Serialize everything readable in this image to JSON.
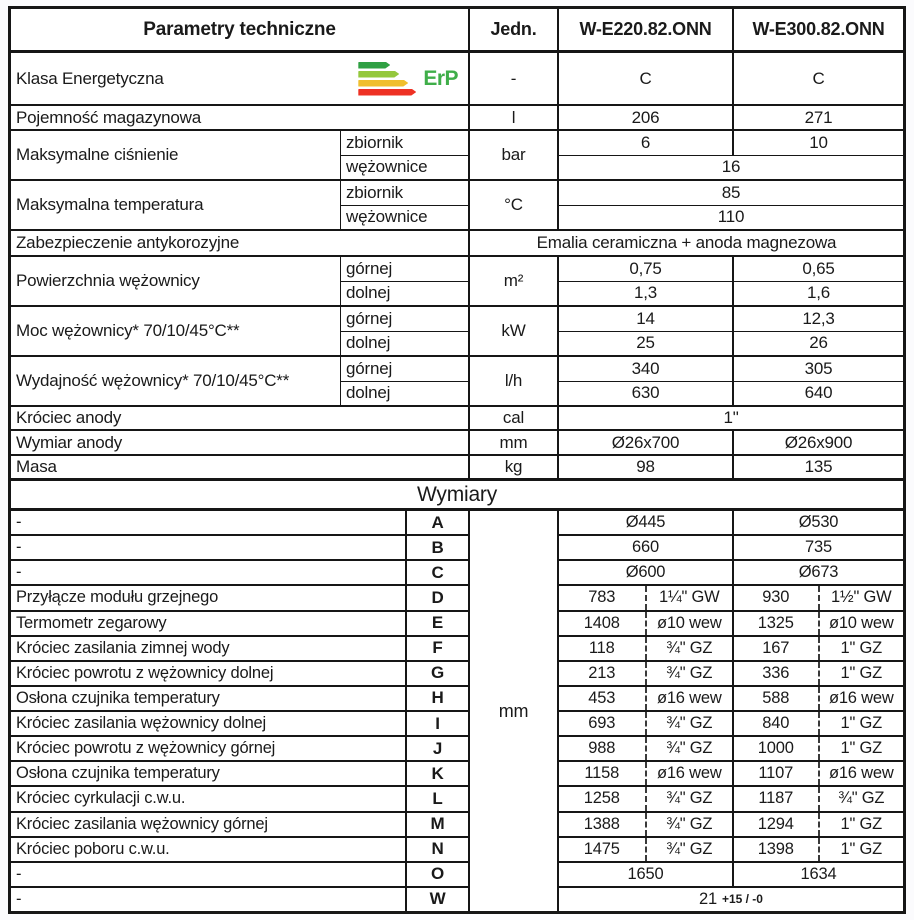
{
  "header": {
    "param": "Parametry techniczne",
    "unit": "Jedn.",
    "model1": "W-E220.82.ONN",
    "model2": "W-E300.82.ONN"
  },
  "energy": {
    "label": "Klasa Energetyczna",
    "erp_text": "ErP",
    "unit": "-",
    "v1": "C",
    "v2": "C",
    "bar_colors": [
      "#2fa043",
      "#94c83d",
      "#f0bf2e",
      "#ee3124"
    ],
    "erp_color": "#3fae49"
  },
  "pojemnosc": {
    "name": "Pojemność magazynowa",
    "unit": "l",
    "v1": "206",
    "v2": "271"
  },
  "cisnienie": {
    "name": "Maksymalne ciśnienie",
    "sub1": "zbiornik",
    "sub2": "wężownice",
    "unit": "bar",
    "r1v1": "6",
    "r1v2": "10",
    "r2": "16"
  },
  "temperatura": {
    "name": "Maksymalna temperatura",
    "sub1": "zbiornik",
    "sub2": "wężownice",
    "unit": "°C",
    "r1": "85",
    "r2": "110"
  },
  "zabezpieczenie": {
    "name": "Zabezpieczenie antykorozyjne",
    "value": "Emalia ceramiczna + anoda magnezowa"
  },
  "powierzchnia": {
    "name": "Powierzchnia wężownicy",
    "sub1": "górnej",
    "sub2": "dolnej",
    "unit": "m²",
    "r1v1": "0,75",
    "r1v2": "0,65",
    "r2v1": "1,3",
    "r2v2": "1,6"
  },
  "moc": {
    "name": "Moc wężownicy* 70/10/45°C**",
    "sub1": "górnej",
    "sub2": "dolnej",
    "unit": "kW",
    "r1v1": "14",
    "r1v2": "12,3",
    "r2v1": "25",
    "r2v2": "26"
  },
  "wydajnosc": {
    "name": "Wydajność wężownicy* 70/10/45°C**",
    "sub1": "górnej",
    "sub2": "dolnej",
    "unit": "l/h",
    "r1v1": "340",
    "r1v2": "305",
    "r2v1": "630",
    "r2v2": "640"
  },
  "krociec_anody": {
    "name": "Króciec anody",
    "unit": "cal",
    "value": "1\""
  },
  "wymiar_anody": {
    "name": "Wymiar anody",
    "unit": "mm",
    "v1": "Ø26x700",
    "v2": "Ø26x900"
  },
  "masa": {
    "name": "Masa",
    "unit": "kg",
    "v1": "98",
    "v2": "135"
  },
  "wymiary": {
    "title": "Wymiary",
    "unit": "mm"
  },
  "dims": [
    {
      "name": "-",
      "letter": "A",
      "type": "single",
      "v1": "Ø445",
      "v2": "Ø530"
    },
    {
      "name": "-",
      "letter": "B",
      "type": "single",
      "v1": "660",
      "v2": "735"
    },
    {
      "name": "-",
      "letter": "C",
      "type": "single",
      "v1": "Ø600",
      "v2": "Ø673"
    },
    {
      "name": "Przyłącze modułu grzejnego",
      "letter": "D",
      "type": "split",
      "v1": "783",
      "t1": "1¼\" GW",
      "v2": "930",
      "t2": "1½\" GW"
    },
    {
      "name": "Termometr zegarowy",
      "letter": "E",
      "type": "split",
      "v1": "1408",
      "t1": "ø10 wew",
      "v2": "1325",
      "t2": "ø10 wew"
    },
    {
      "name": "Króciec zasilania zimnej wody",
      "letter": "F",
      "type": "split",
      "v1": "118",
      "t1": "¾\" GZ",
      "v2": "167",
      "t2": "1\" GZ"
    },
    {
      "name": "Króciec powrotu z wężownicy dolnej",
      "letter": "G",
      "type": "split",
      "v1": "213",
      "t1": "¾\" GZ",
      "v2": "336",
      "t2": "1\" GZ"
    },
    {
      "name": "Osłona czujnika temperatury",
      "letter": "H",
      "type": "split",
      "v1": "453",
      "t1": "ø16 wew",
      "v2": "588",
      "t2": "ø16 wew"
    },
    {
      "name": "Króciec zasilania wężownicy dolnej",
      "letter": "I",
      "type": "split",
      "v1": "693",
      "t1": "¾\" GZ",
      "v2": "840",
      "t2": "1\" GZ"
    },
    {
      "name": "Króciec powrotu z wężownicy górnej",
      "letter": "J",
      "type": "split",
      "v1": "988",
      "t1": "¾\" GZ",
      "v2": "1000",
      "t2": "1\" GZ"
    },
    {
      "name": "Osłona czujnika temperatury",
      "letter": "K",
      "type": "split",
      "v1": "1158",
      "t1": "ø16 wew",
      "v2": "1107",
      "t2": "ø16 wew"
    },
    {
      "name": "Króciec cyrkulacji c.w.u.",
      "letter": "L",
      "type": "split",
      "v1": "1258",
      "t1": "¾\" GZ",
      "v2": "1187",
      "t2": "¾\" GZ"
    },
    {
      "name": "Króciec zasilania wężownicy górnej",
      "letter": "M",
      "type": "split",
      "v1": "1388",
      "t1": "¾\" GZ",
      "v2": "1294",
      "t2": "1\" GZ"
    },
    {
      "name": "Króciec poboru c.w.u.",
      "letter": "N",
      "type": "split",
      "v1": "1475",
      "t1": "¾\" GZ",
      "v2": "1398",
      "t2": "1\" GZ"
    },
    {
      "name": "-",
      "letter": "O",
      "type": "single",
      "v1": "1650",
      "v2": "1634"
    },
    {
      "name": "-",
      "letter": "W",
      "type": "span",
      "v": "21",
      "tol": "+15 / -0"
    }
  ]
}
